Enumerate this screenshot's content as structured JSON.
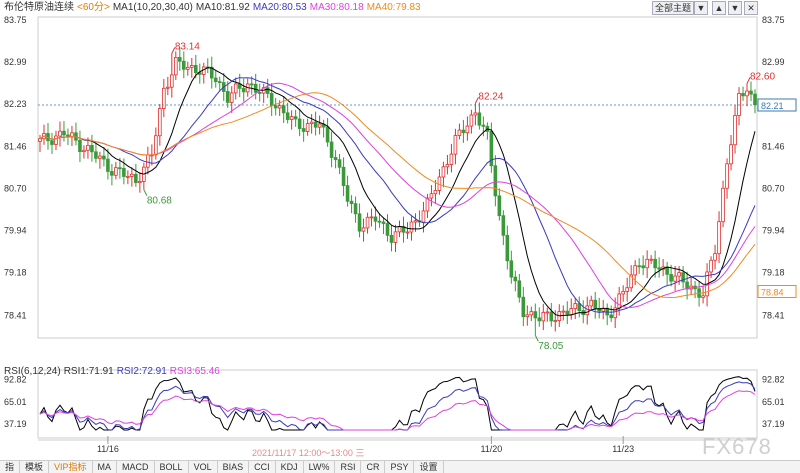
{
  "header": {
    "symbol": "布伦特原油连续",
    "period": "<60分>",
    "ma_label": "MA1(10,20,30,40)",
    "ma10": "MA10:81.92",
    "ma20": "MA20:80.53",
    "ma30": "MA30:80.18",
    "ma40": "MA40:79.83"
  },
  "toolbar": {
    "theme_select": "全部主题",
    "theme_arrow": "▼",
    "btn_up": "▲",
    "btn_down": "▼",
    "btn_close": "✕"
  },
  "rsi_header": {
    "label": "RSI(6,12,24)",
    "rsi1": "RSI1:71.91",
    "rsi2": "RSI2:72.91",
    "rsi3": "RSI3:65.46"
  },
  "time_info": "2021/11/17 12:00～13:00 三",
  "footer_tabs": [
    "指",
    "模板",
    "VIP指标",
    "MA",
    "MACD",
    "BOLL",
    "VOL",
    "BIAS",
    "CCI",
    "KDJ",
    "LW%",
    "RSI",
    "CR",
    "PSY",
    "设置"
  ],
  "watermark": "FX678",
  "colors": {
    "up": "#e03030",
    "down": "#3a9a3a",
    "ma10": "#000000",
    "ma20": "#3a3ac0",
    "ma30": "#e040e0",
    "ma40": "#f08a20",
    "rsi1": "#000000",
    "rsi2": "#3a3ac0",
    "rsi3": "#e040e0",
    "current_line": "#3a7ab0",
    "last_price_box": "#3a7ab0",
    "ma40_box": "#f08a20"
  },
  "chart_data": {
    "type": "candlestick",
    "price_ticks": [
      "83.75",
      "82.99",
      "82.23",
      "81.46",
      "80.70",
      "79.94",
      "79.18",
      "78.41"
    ],
    "price_ylim": [
      78.0,
      83.8
    ],
    "rsi_ticks": [
      "92.82",
      "65.01",
      "37.19"
    ],
    "rsi_ylim": [
      30,
      100
    ],
    "date_labels": [
      {
        "label": "11/16",
        "index": 17
      },
      {
        "label": "11/20",
        "index": 113
      },
      {
        "label": "11/23",
        "index": 146
      }
    ],
    "annotations": [
      {
        "text": "83.14",
        "index": 33,
        "value": 83.14,
        "kind": "high"
      },
      {
        "text": "80.68",
        "index": 26,
        "value": 80.68,
        "kind": "low"
      },
      {
        "text": "82.24",
        "index": 109,
        "value": 82.24,
        "kind": "high"
      },
      {
        "text": "78.05",
        "index": 124,
        "value": 78.05,
        "kind": "low"
      },
      {
        "text": "82.60",
        "index": 177,
        "value": 82.6,
        "kind": "high"
      }
    ],
    "last_price": "82.21",
    "last_price_value": 82.21,
    "ma40_last": "78.84",
    "ma40_last_value": 78.84,
    "close_anchors": [
      [
        0,
        81.55
      ],
      [
        6,
        81.7
      ],
      [
        12,
        81.4
      ],
      [
        18,
        81.05
      ],
      [
        24,
        80.85
      ],
      [
        28,
        81.3
      ],
      [
        31,
        82.5
      ],
      [
        34,
        82.95
      ],
      [
        40,
        82.85
      ],
      [
        44,
        82.7
      ],
      [
        47,
        82.35
      ],
      [
        52,
        82.6
      ],
      [
        58,
        82.3
      ],
      [
        64,
        81.85
      ],
      [
        70,
        81.85
      ],
      [
        74,
        81.25
      ],
      [
        77,
        80.5
      ],
      [
        80,
        80.05
      ],
      [
        84,
        80.15
      ],
      [
        88,
        79.85
      ],
      [
        92,
        79.95
      ],
      [
        97,
        80.4
      ],
      [
        100,
        80.9
      ],
      [
        104,
        81.55
      ],
      [
        109,
        82.1
      ],
      [
        112,
        81.6
      ],
      [
        115,
        80.2
      ],
      [
        118,
        79.1
      ],
      [
        121,
        78.5
      ],
      [
        125,
        78.35
      ],
      [
        131,
        78.45
      ],
      [
        138,
        78.6
      ],
      [
        142,
        78.4
      ],
      [
        146,
        78.8
      ],
      [
        150,
        79.4
      ],
      [
        154,
        79.3
      ],
      [
        158,
        79.15
      ],
      [
        162,
        78.95
      ],
      [
        166,
        78.8
      ],
      [
        169,
        79.6
      ],
      [
        172,
        81.2
      ],
      [
        175,
        82.3
      ],
      [
        177,
        82.55
      ],
      [
        179,
        82.21
      ]
    ],
    "series": [
      {
        "name": "MA10"
      },
      {
        "name": "MA20"
      },
      {
        "name": "MA30"
      },
      {
        "name": "MA40"
      },
      {
        "name": "RSI1"
      },
      {
        "name": "RSI2"
      },
      {
        "name": "RSI3"
      }
    ]
  }
}
